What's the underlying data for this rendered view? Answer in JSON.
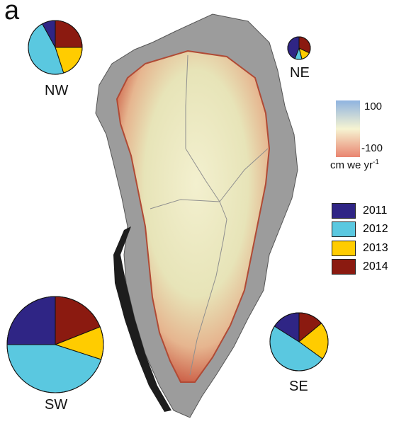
{
  "panel_label": "a",
  "regions": [
    {
      "name": "NW",
      "shares": {
        "2011": 0.08,
        "2012": 0.47,
        "2013": 0.2,
        "2014": 0.25
      }
    },
    {
      "name": "NE",
      "shares": {
        "2011": 0.44,
        "2012": 0.1,
        "2013": 0.14,
        "2014": 0.32
      }
    },
    {
      "name": "SW",
      "shares": {
        "2011": 0.25,
        "2012": 0.45,
        "2013": 0.11,
        "2014": 0.19
      }
    },
    {
      "name": "SE",
      "shares": {
        "2011": 0.16,
        "2012": 0.49,
        "2013": 0.21,
        "2014": 0.14
      }
    }
  ],
  "colorbar": {
    "max_label": "100",
    "min_label": "-100",
    "unit_label": "cm we yr",
    "unit_superscript": "-1",
    "colors": [
      "#8fb3e0",
      "#f6f4d2",
      "#e98470"
    ]
  },
  "legend": [
    {
      "year": "2011",
      "color": "#2f2585"
    },
    {
      "year": "2012",
      "color": "#5ac8e0"
    },
    {
      "year": "2013",
      "color": "#ffcc00"
    },
    {
      "year": "2014",
      "color": "#8b1a10"
    }
  ]
}
